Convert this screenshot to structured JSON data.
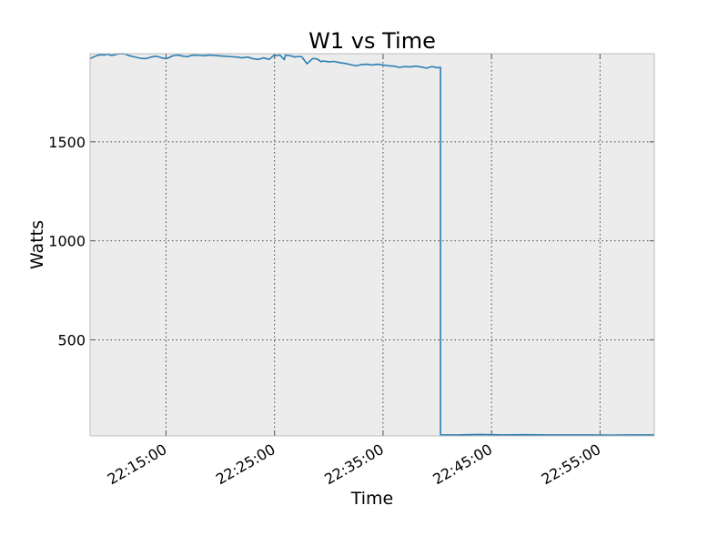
{
  "chart_data": {
    "type": "line",
    "title": "W1 vs Time",
    "xlabel": "Time",
    "ylabel": "Watts",
    "grid": true,
    "colors": {
      "background": "#ececec",
      "line": "#2e7eb3",
      "frame": "#bcbcbc",
      "grid": "#444444"
    },
    "xlim_minutes": [
      8.0,
      60.0
    ],
    "ylim": [
      15,
      1945
    ],
    "y_ticks": [
      500,
      1000,
      1500
    ],
    "y_tick_labels": [
      "500",
      "1000",
      "1500"
    ],
    "x_ticks_minutes": [
      15,
      25,
      35,
      45,
      55
    ],
    "x_tick_labels": [
      "22:15:00",
      "22:25:00",
      "22:35:00",
      "22:45:00",
      "22:55:00"
    ],
    "series": [
      {
        "name": "W1",
        "x_minutes": [
          8.0,
          8.3,
          8.6,
          9.0,
          9.3,
          9.6,
          10.0,
          10.3,
          10.6,
          11.0,
          11.3,
          11.6,
          12.0,
          12.3,
          12.6,
          13.0,
          13.3,
          13.6,
          14.0,
          14.3,
          14.6,
          15.0,
          15.3,
          15.6,
          16.0,
          16.3,
          16.6,
          17.0,
          17.3,
          17.6,
          18.0,
          18.5,
          19.0,
          19.5,
          20.0,
          20.5,
          21.0,
          21.5,
          22.0,
          22.5,
          23.0,
          23.5,
          24.0,
          24.5,
          25.0,
          25.1,
          25.5,
          25.9,
          26.0,
          26.5,
          26.9,
          27.0,
          27.5,
          28.0,
          28.5,
          28.8,
          29.0,
          29.3,
          29.5,
          30.0,
          30.5,
          31.0,
          31.5,
          32.0,
          32.5,
          33.0,
          33.5,
          34.0,
          34.5,
          35.0,
          35.5,
          36.0,
          36.5,
          37.0,
          37.5,
          38.0,
          38.5,
          39.0,
          39.5,
          40.0,
          40.3,
          40.3,
          41.0,
          42.0,
          44.0,
          46.0,
          48.0,
          50.0,
          52.0,
          54.0,
          56.0,
          58.0,
          60.0
        ],
        "y_watts": [
          1920,
          1928,
          1935,
          1940,
          1938,
          1942,
          1936,
          1940,
          1944,
          1945,
          1942,
          1935,
          1930,
          1926,
          1922,
          1920,
          1922,
          1928,
          1932,
          1930,
          1924,
          1920,
          1926,
          1934,
          1938,
          1936,
          1932,
          1930,
          1936,
          1938,
          1937,
          1935,
          1938,
          1936,
          1934,
          1932,
          1930,
          1928,
          1924,
          1928,
          1920,
          1916,
          1924,
          1916,
          1940,
          1935,
          1938,
          1915,
          1938,
          1934,
          1928,
          1930,
          1930,
          1894,
          1920,
          1920,
          1916,
          1904,
          1908,
          1904,
          1906,
          1900,
          1896,
          1890,
          1884,
          1890,
          1892,
          1888,
          1892,
          1888,
          1884,
          1882,
          1876,
          1880,
          1878,
          1882,
          1878,
          1872,
          1880,
          1874,
          1876,
          20,
          20,
          20,
          22,
          20,
          21,
          20,
          20,
          20,
          19,
          20,
          20
        ]
      }
    ]
  }
}
